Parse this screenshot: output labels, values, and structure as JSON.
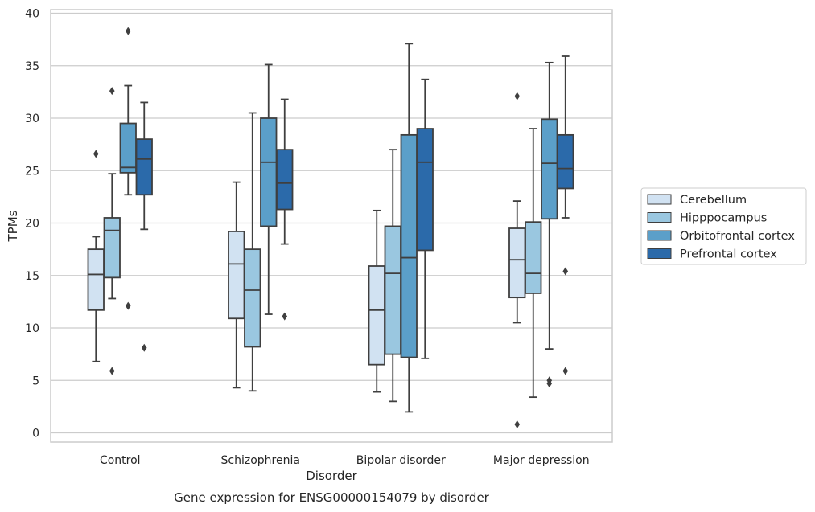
{
  "chart_data": {
    "type": "box",
    "xlabel": "Disorder",
    "ylabel": "TPMs",
    "caption": "Gene expression for ENSG00000154079 by disorder",
    "ylim": [
      -1,
      40.3
    ],
    "yticks": [
      0,
      5,
      10,
      15,
      20,
      25,
      30,
      35,
      40
    ],
    "grid": "horizontal",
    "legend_position": "right",
    "categories": [
      "Control",
      "Schizophrenia",
      "Bipolar disorder",
      "Major depression"
    ],
    "series": [
      {
        "name": "Cerebellum",
        "color": "#d1e2f2",
        "boxes": [
          {
            "whislo": 6.8,
            "q1": 11.7,
            "med": 15.1,
            "q3": 17.5,
            "whishi": 18.7,
            "fliers": [
              26.6
            ]
          },
          {
            "whislo": 4.3,
            "q1": 10.9,
            "med": 16.1,
            "q3": 19.2,
            "whishi": 23.9,
            "fliers": []
          },
          {
            "whislo": 3.9,
            "q1": 6.5,
            "med": 11.7,
            "q3": 15.9,
            "whishi": 21.2,
            "fliers": []
          },
          {
            "whislo": 10.5,
            "q1": 12.9,
            "med": 16.5,
            "q3": 19.5,
            "whishi": 22.1,
            "fliers": [
              32.1,
              0.8
            ]
          }
        ]
      },
      {
        "name": "Hipppocampus",
        "color": "#9ac7e0",
        "boxes": [
          {
            "whislo": 12.8,
            "q1": 14.8,
            "med": 19.3,
            "q3": 20.5,
            "whishi": 24.7,
            "fliers": [
              32.6,
              5.9
            ]
          },
          {
            "whislo": 4.0,
            "q1": 8.2,
            "med": 13.6,
            "q3": 17.5,
            "whishi": 30.5,
            "fliers": []
          },
          {
            "whislo": 3.0,
            "q1": 7.5,
            "med": 15.2,
            "q3": 19.7,
            "whishi": 27.0,
            "fliers": []
          },
          {
            "whislo": 3.4,
            "q1": 13.3,
            "med": 15.2,
            "q3": 20.1,
            "whishi": 29.0,
            "fliers": []
          }
        ]
      },
      {
        "name": "Orbitofrontal cortex",
        "color": "#5b9fc9",
        "boxes": [
          {
            "whislo": 22.7,
            "q1": 24.8,
            "med": 25.3,
            "q3": 29.5,
            "whishi": 33.1,
            "fliers": [
              38.3,
              12.1
            ]
          },
          {
            "whislo": 11.3,
            "q1": 19.7,
            "med": 25.8,
            "q3": 30.0,
            "whishi": 35.1,
            "fliers": []
          },
          {
            "whislo": 2.0,
            "q1": 7.2,
            "med": 16.7,
            "q3": 28.4,
            "whishi": 37.1,
            "fliers": []
          },
          {
            "whislo": 8.0,
            "q1": 20.4,
            "med": 25.7,
            "q3": 29.9,
            "whishi": 35.3,
            "fliers": [
              5.0,
              4.7
            ]
          }
        ]
      },
      {
        "name": "Prefrontal cortex",
        "color": "#2b6aaa",
        "boxes": [
          {
            "whislo": 19.4,
            "q1": 22.7,
            "med": 26.1,
            "q3": 28.0,
            "whishi": 31.5,
            "fliers": [
              8.1
            ]
          },
          {
            "whislo": 18.0,
            "q1": 21.3,
            "med": 23.8,
            "q3": 27.0,
            "whishi": 31.8,
            "fliers": [
              11.1
            ]
          },
          {
            "whislo": 7.1,
            "q1": 17.4,
            "med": 25.8,
            "q3": 29.0,
            "whishi": 33.7,
            "fliers": []
          },
          {
            "whislo": 20.5,
            "q1": 23.3,
            "med": 25.2,
            "q3": 28.4,
            "whishi": 35.9,
            "fliers": [
              15.4,
              5.9
            ]
          }
        ]
      }
    ]
  }
}
